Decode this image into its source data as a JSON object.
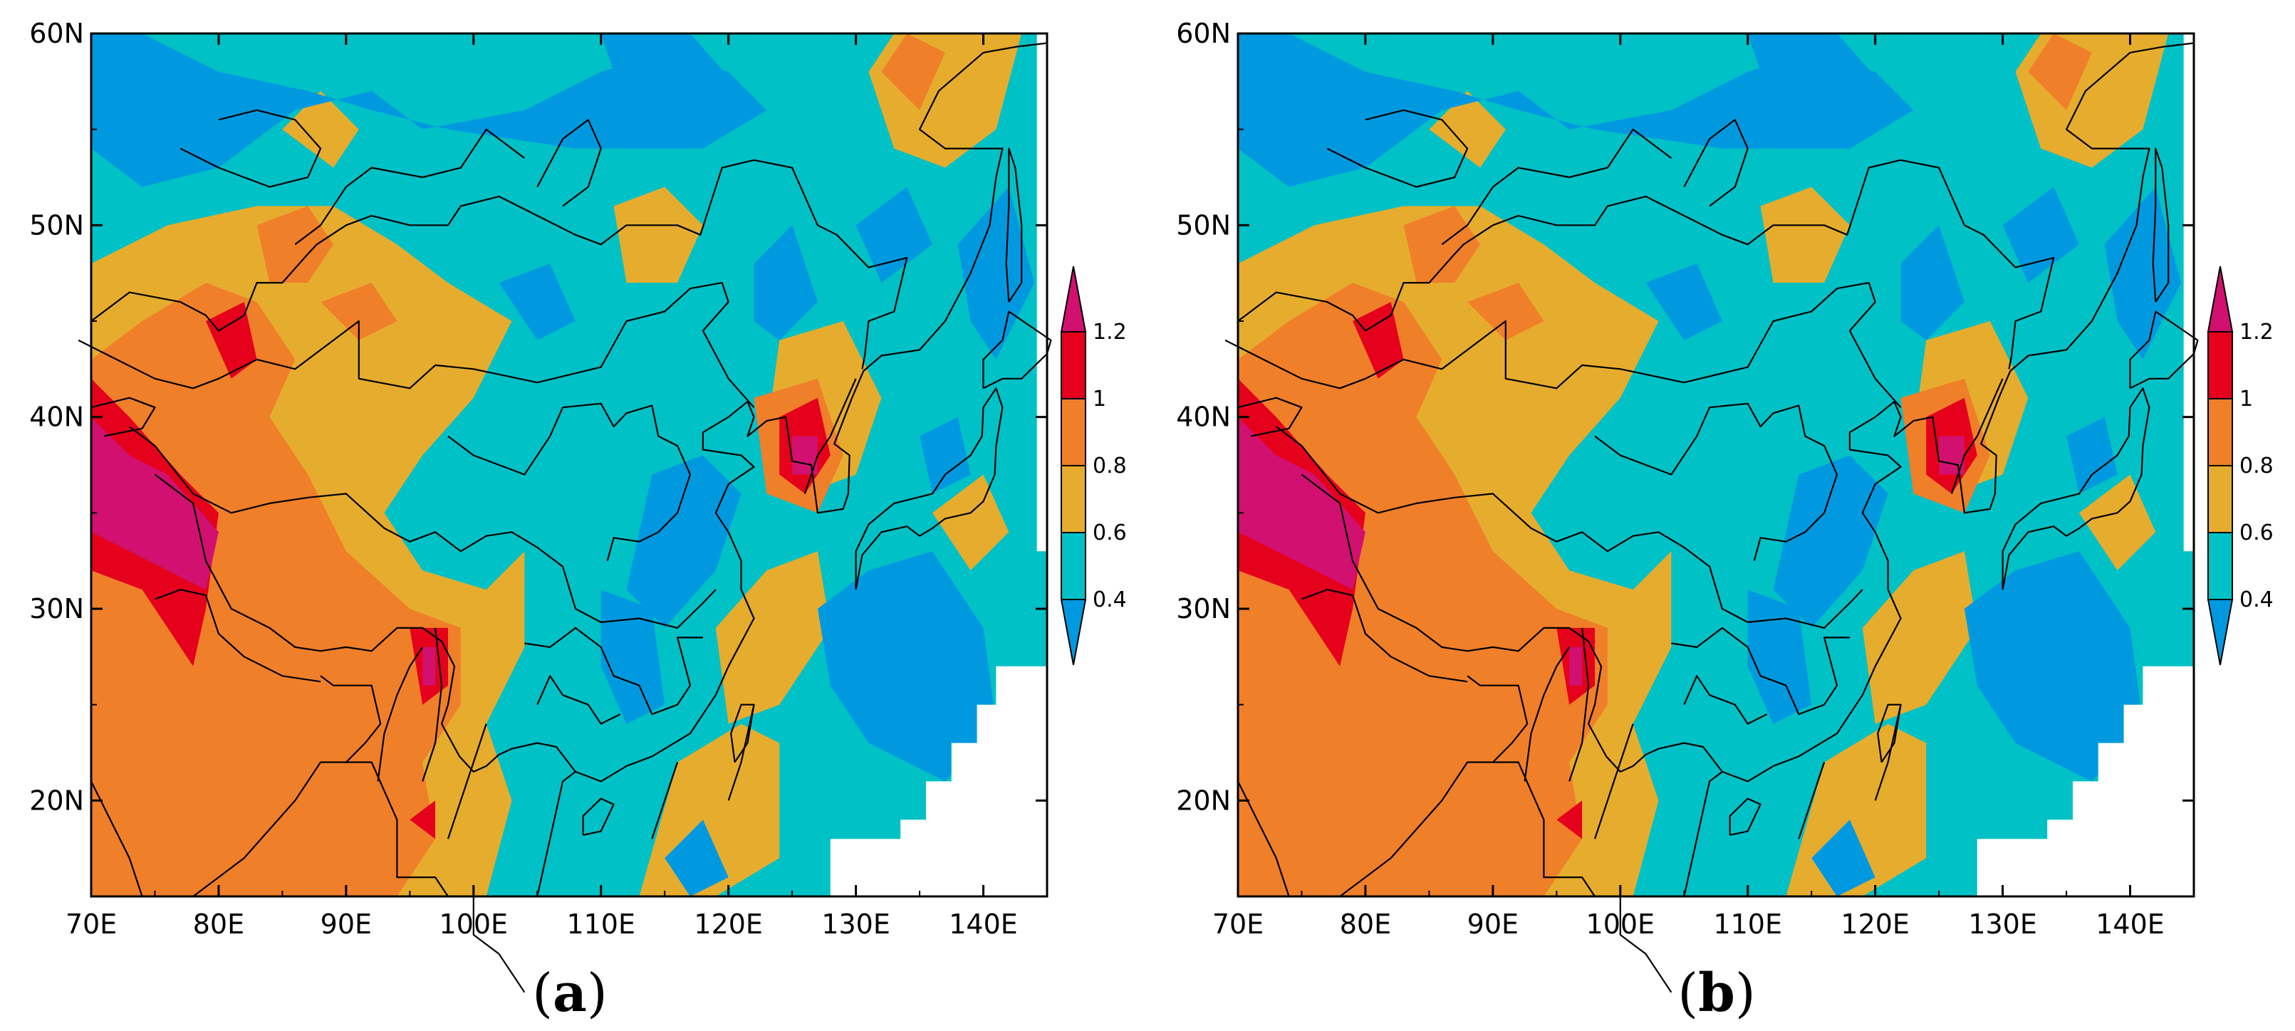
{
  "colorbar": {
    "levels": [
      "0.4",
      "0.6",
      "0.8",
      "1",
      "1.2"
    ],
    "colors": {
      "below_0_4": "#0099e0",
      "c_0_4_0_6": "#00c1c6",
      "c_0_6_0_8": "#e6ac2e",
      "c_0_8_1": "#f07f2a",
      "c_1_1_2": "#e5001c",
      "above_1_2": "#d21070"
    }
  },
  "axes": {
    "lon_ticks": [
      "70E",
      "80E",
      "90E",
      "100E",
      "110E",
      "120E",
      "130E",
      "140E"
    ],
    "lat_ticks": [
      "20N",
      "30N",
      "40N",
      "50N",
      "60N"
    ]
  },
  "panels": [
    {
      "id": "a",
      "caption": "a"
    },
    {
      "id": "b",
      "caption": "b"
    }
  ]
}
